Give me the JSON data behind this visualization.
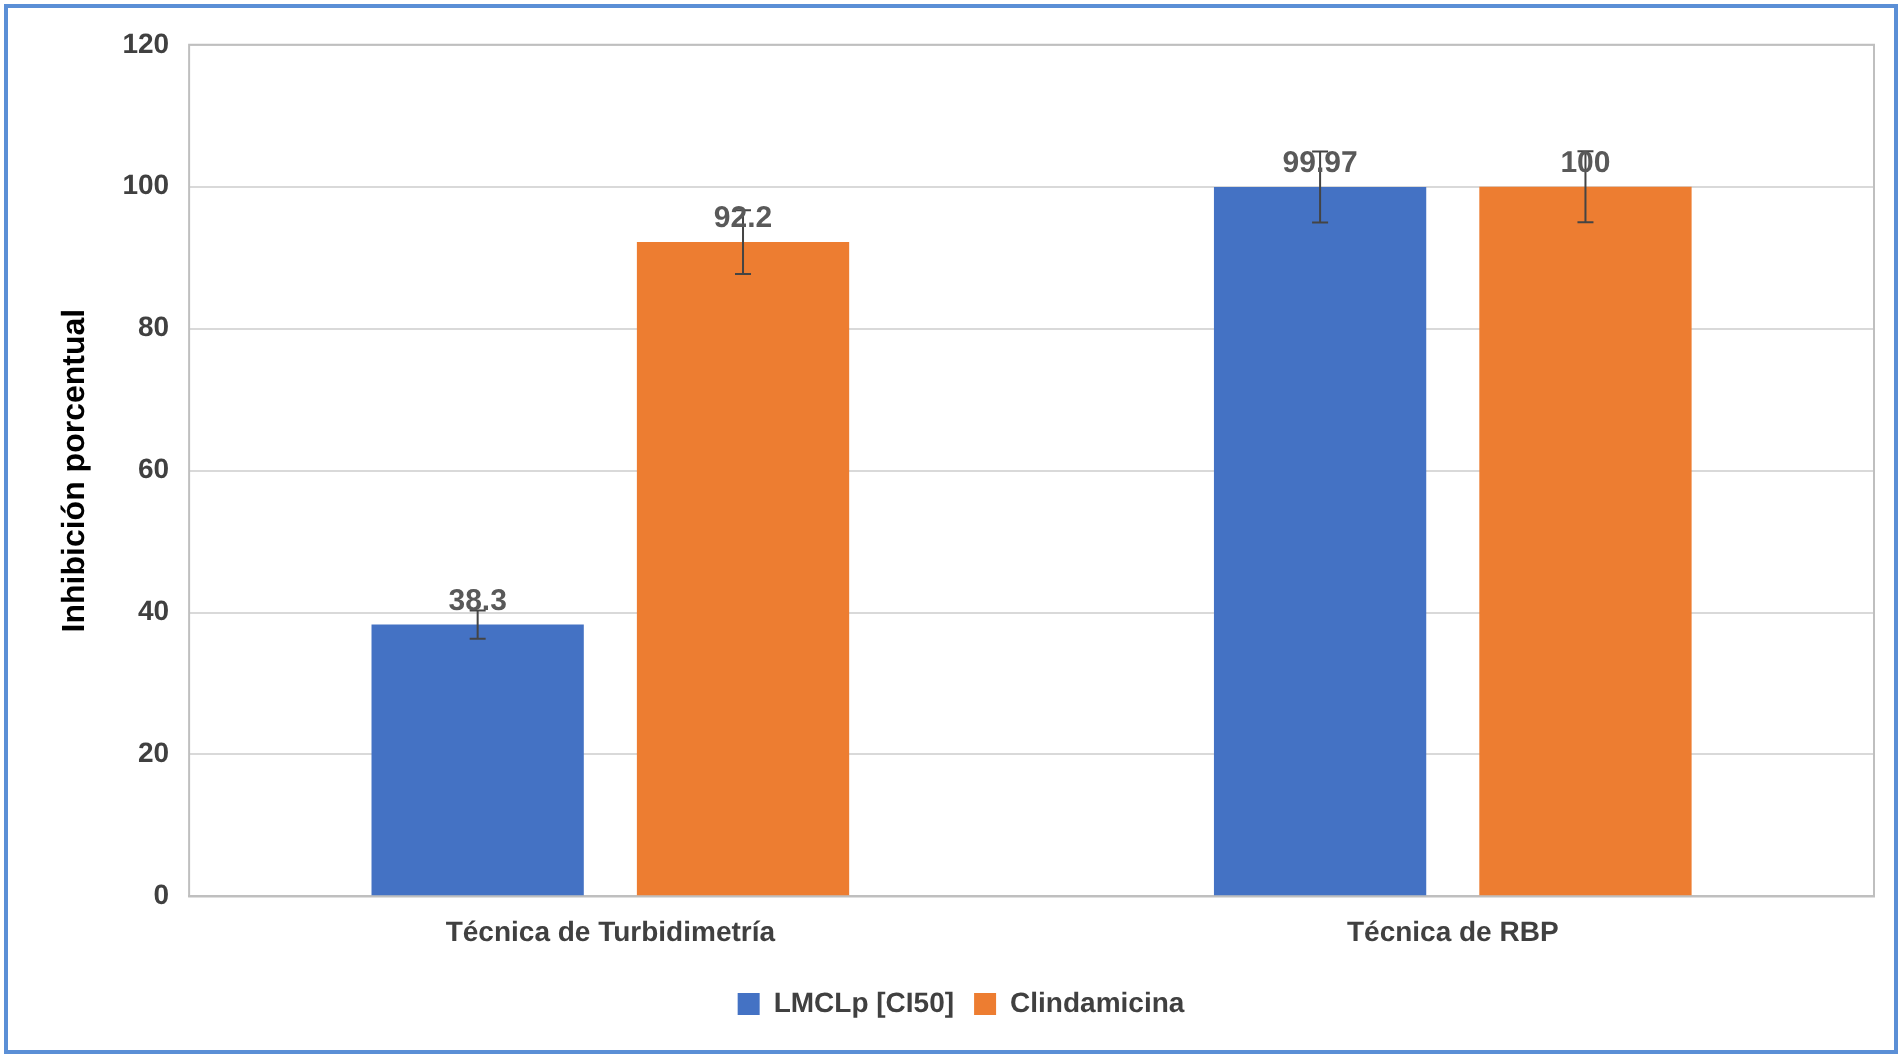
{
  "chart_data": {
    "type": "bar",
    "ylabel": "Inhibición porcentual",
    "categories": [
      "Técnica de Turbidimetría",
      "Técnica de RBP"
    ],
    "series": [
      {
        "name": "LMCLp [CI50]",
        "color": "#4472c4",
        "values": [
          38.3,
          99.97
        ],
        "errors": [
          2,
          5
        ]
      },
      {
        "name": "Clindamicina",
        "color": "#ed7d31",
        "values": [
          92.2,
          100
        ],
        "errors": [
          4.5,
          5
        ]
      }
    ],
    "ylim": [
      0,
      120
    ],
    "yticks": [
      0,
      20,
      40,
      60,
      80,
      100,
      120
    ],
    "grid": "y",
    "legend": "bottom",
    "data_labels": true
  }
}
